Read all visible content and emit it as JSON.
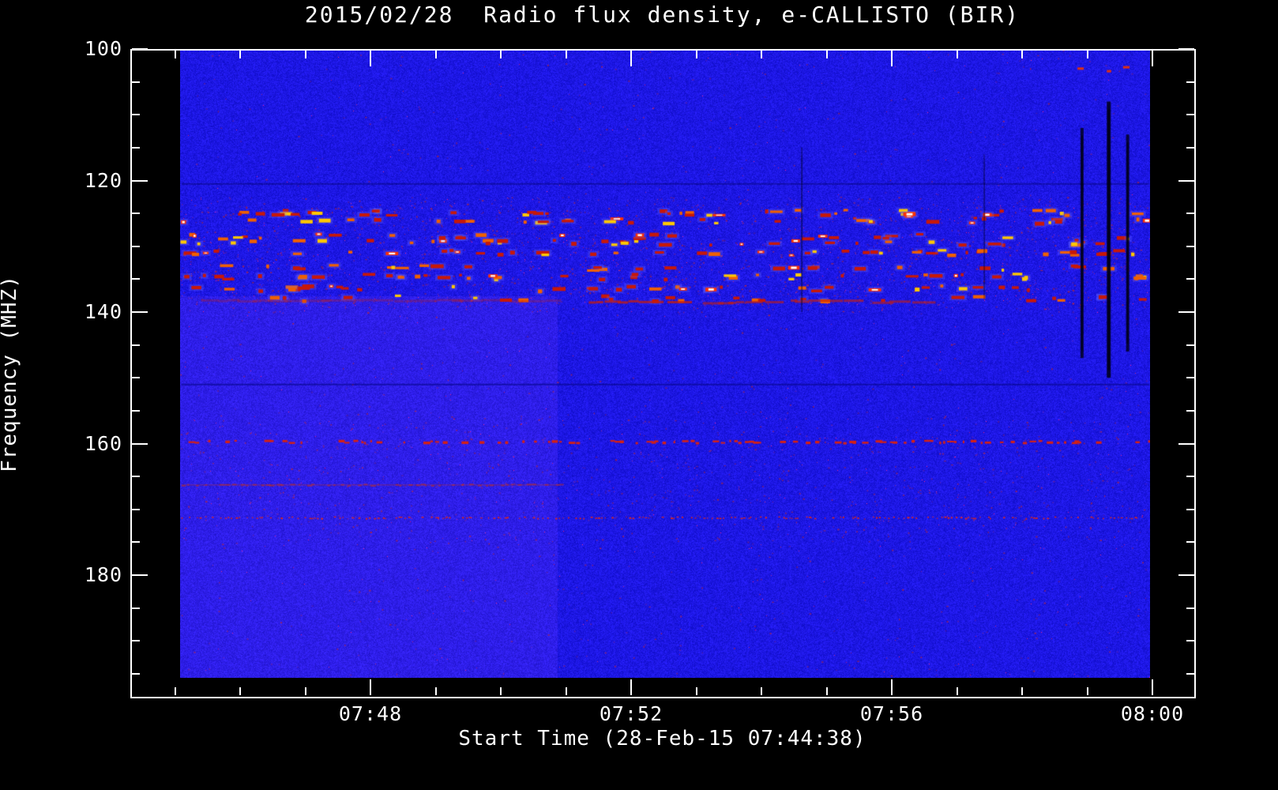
{
  "title": "2015/02/28  Radio flux density, e-CALLISTO (BIR)",
  "chart_data": {
    "type": "heatmap",
    "title": "2015/02/28  Radio flux density, e-CALLISTO (BIR)",
    "xlabel": "Start Time (28-Feb-15 07:44:38)",
    "ylabel": "Frequency (MHZ)",
    "x_axis": {
      "units": "minutes after 07:00",
      "range": [
        44.315,
        60.642
      ],
      "major_ticks": [
        {
          "t": 48,
          "label": "07:48"
        },
        {
          "t": 52,
          "label": "07:52"
        },
        {
          "t": 56,
          "label": "07:56"
        },
        {
          "t": 60,
          "label": "08:00"
        }
      ],
      "minor_tick_start": 45,
      "minor_tick_end": 60,
      "minor_step": 1
    },
    "y_axis": {
      "units": "MHz",
      "range": [
        100,
        198.5
      ],
      "major_ticks": [
        {
          "f": 100,
          "label": "100"
        },
        {
          "f": 120,
          "label": "120"
        },
        {
          "f": 140,
          "label": "140"
        },
        {
          "f": 160,
          "label": "160"
        },
        {
          "f": 180,
          "label": "180"
        }
      ],
      "minor_tick_start": 100,
      "minor_tick_end": 195,
      "minor_step": 5,
      "inverted": true
    },
    "data_region": {
      "t_start": 45.08,
      "t_end": 59.96,
      "f_start": 100.2,
      "f_end": 195.6
    },
    "features": {
      "base_color": "#1414dc",
      "left_region": {
        "t_end": 50.87,
        "f_start": 137.5
      },
      "burst_band": {
        "f_min": 122.5,
        "f_max": 140,
        "rows_mhz": [
          124.7,
          125.9,
          128.3,
          129.2,
          130.8,
          133.1,
          134.4,
          136.2,
          137.7
        ],
        "count": 330,
        "colors": [
          "#c81808",
          "#f06000",
          "#ffc800",
          "#ffffff"
        ]
      },
      "rfi_lines": [
        {
          "f": 159.6,
          "t_start": 45.1,
          "t_end": 59.95,
          "style": "dashes",
          "color": "#d42114",
          "density": 0.55
        },
        {
          "f": 166.2,
          "t_start": 45.1,
          "t_end": 50.9,
          "style": "faint-line",
          "color": "#c03020",
          "density": 0.8
        },
        {
          "f": 171.2,
          "t_start": 45.1,
          "t_end": 59.95,
          "style": "dots",
          "color": "#e02818",
          "density": 0.7
        },
        {
          "f": 150.9,
          "t_start": 45.1,
          "t_end": 59.95,
          "style": "dark-line",
          "color": "rgba(8,8,140,0.65)",
          "density": 1
        },
        {
          "f": 120.4,
          "t_start": 45.1,
          "t_end": 59.95,
          "style": "dark-line",
          "color": "rgba(0,0,90,0.4)",
          "density": 1
        }
      ],
      "smear_color": "#c81e0a",
      "smears": [
        {
          "f": 138.3,
          "t_start": 51.35,
          "t_end": 52.75,
          "alpha": 0.75
        },
        {
          "f": 138.4,
          "t_start": 53.1,
          "t_end": 54.15,
          "alpha": 0.6
        },
        {
          "f": 138.2,
          "t_start": 54.45,
          "t_end": 55.3,
          "alpha": 0.65
        },
        {
          "f": 138.3,
          "t_start": 55.7,
          "t_end": 56.45,
          "alpha": 0.6
        },
        {
          "f": 138.1,
          "t_start": 45.4,
          "t_end": 50.8,
          "alpha": 0.3
        }
      ],
      "dropouts": [
        {
          "t": 58.92,
          "f1": 112,
          "f2": 147,
          "w": 4,
          "alpha": 0.8
        },
        {
          "t": 59.33,
          "f1": 108,
          "f2": 150,
          "w": 5,
          "alpha": 0.85
        },
        {
          "t": 59.62,
          "f1": 113,
          "f2": 146,
          "w": 4,
          "alpha": 0.8
        },
        {
          "t": 54.62,
          "f1": 115,
          "f2": 140,
          "w": 2,
          "alpha": 0.35
        },
        {
          "t": 57.42,
          "f1": 116,
          "f2": 138,
          "w": 2,
          "alpha": 0.3
        }
      ],
      "speckle_count": 2600,
      "top_right_specks": [
        {
          "t": 58.85,
          "f": 102.8
        },
        {
          "t": 59.3,
          "f": 103.2
        },
        {
          "t": 59.55,
          "f": 102.6
        }
      ]
    }
  }
}
